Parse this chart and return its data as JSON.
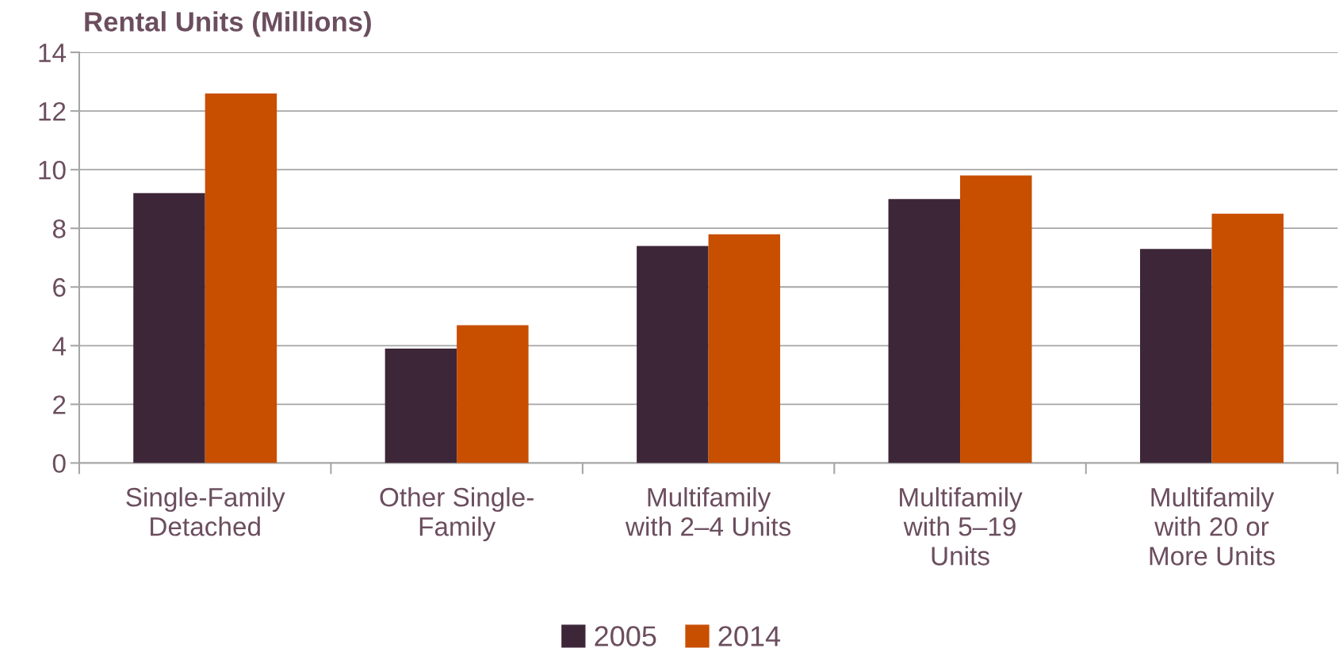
{
  "chart_data": {
    "type": "bar",
    "title": "Rental Units (Millions)",
    "categories": [
      "Single-Family\nDetached",
      "Other Single-\nFamily",
      "Multifamily\nwith 2–4 Units",
      "Multifamily\nwith 5–19\nUnits",
      "Multifamily\nwith 20 or\nMore Units"
    ],
    "series": [
      {
        "name": "2005",
        "color": "#3d2638",
        "values": [
          9.2,
          3.9,
          7.4,
          9.0,
          7.3
        ]
      },
      {
        "name": "2014",
        "color": "#c84e00",
        "values": [
          12.6,
          4.7,
          7.8,
          9.8,
          8.5
        ]
      }
    ],
    "ylim": [
      0,
      14
    ],
    "yticks": [
      0,
      2,
      4,
      6,
      8,
      10,
      12,
      14
    ],
    "grid": "y",
    "legend": "bottom"
  }
}
